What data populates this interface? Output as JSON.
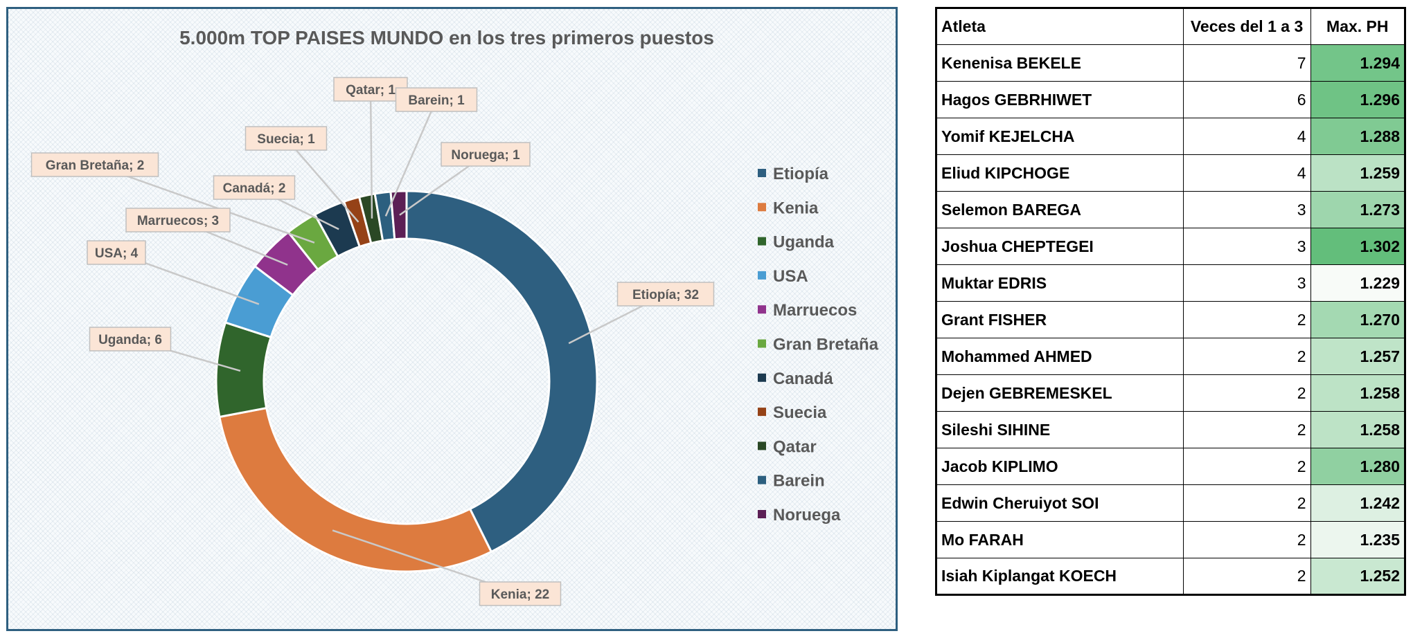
{
  "chart_data": {
    "type": "pie",
    "title": "5.000m TOP PAISES MUNDO en los tres primeros puestos",
    "categories": [
      "Etiopía",
      "Kenia",
      "Uganda",
      "USA",
      "Marruecos",
      "Gran Bretaña",
      "Canadá",
      "Suecia",
      "Qatar",
      "Barein",
      "Noruega"
    ],
    "values": [
      32,
      22,
      6,
      4,
      3,
      2,
      2,
      1,
      1,
      1,
      1
    ],
    "colors": [
      "#2e5f80",
      "#dd7b3f",
      "#30652c",
      "#4a9dd3",
      "#90338c",
      "#6aa840",
      "#1c3a50",
      "#954217",
      "#2a4825",
      "#2c5f7f",
      "#5c1f55"
    ],
    "data_labels": [
      "Etiopía; 32",
      "Kenia; 22",
      "Uganda; 6",
      "USA; 4",
      "Marruecos; 3",
      "Gran Bretaña; 2",
      "Canadá; 2",
      "Suecia; 1",
      "Qatar; 1",
      "Barein; 1",
      "Noruega; 1"
    ],
    "legend_position": "right",
    "style": "doughnut"
  },
  "table": {
    "headers": [
      "Atleta",
      "Veces del 1 a 3",
      "Max. PH"
    ],
    "rows": [
      {
        "name": "Kenenisa BEKELE",
        "times": "7",
        "ph": "1.294"
      },
      {
        "name": "Hagos GEBRHIWET",
        "times": "6",
        "ph": "1.296"
      },
      {
        "name": "Yomif KEJELCHA",
        "times": "4",
        "ph": "1.288"
      },
      {
        "name": "Eliud KIPCHOGE",
        "times": "4",
        "ph": "1.259"
      },
      {
        "name": "Selemon BAREGA",
        "times": "3",
        "ph": "1.273"
      },
      {
        "name": "Joshua CHEPTEGEI",
        "times": "3",
        "ph": "1.302"
      },
      {
        "name": "Muktar EDRIS",
        "times": "3",
        "ph": "1.229"
      },
      {
        "name": "Grant FISHER",
        "times": "2",
        "ph": "1.270"
      },
      {
        "name": "Mohammed AHMED",
        "times": "2",
        "ph": "1.257"
      },
      {
        "name": "Dejen GEBREMESKEL",
        "times": "2",
        "ph": "1.258"
      },
      {
        "name": "Sileshi SIHINE",
        "times": "2",
        "ph": "1.258"
      },
      {
        "name": "Jacob KIPLIMO",
        "times": "2",
        "ph": "1.280"
      },
      {
        "name": "Edwin Cheruiyot SOI",
        "times": "2",
        "ph": "1.242"
      },
      {
        "name": "Mo FARAH",
        "times": "2",
        "ph": "1.235"
      },
      {
        "name": "Isiah Kiplangat KOECH",
        "times": "2",
        "ph": "1.252"
      }
    ],
    "heat_colors": {
      "low": "#f8fbf8",
      "high": "#63be7b"
    }
  }
}
